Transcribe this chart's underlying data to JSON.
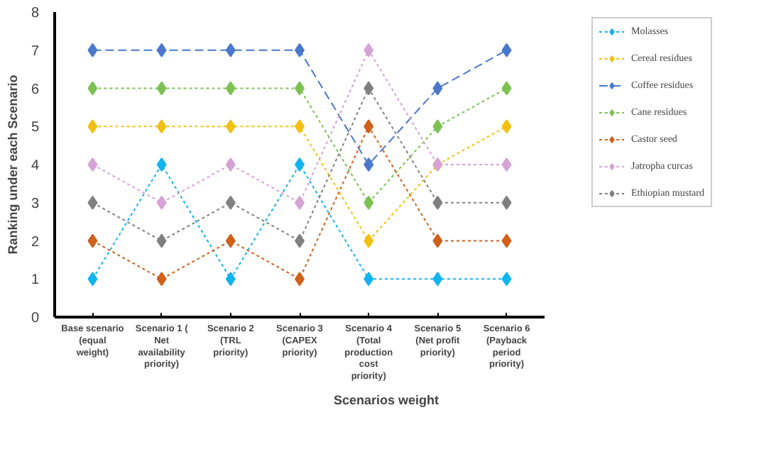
{
  "chart_data": {
    "type": "line",
    "categories": [
      "Base scenario (equal weight)",
      "Scenario 1 ( Net availability priority)",
      "Scenario 2 (TRL priority)",
      "Scenario 3 (CAPEX priority)",
      "Scenario 4 (Total production cost priority)",
      "Scenario 5 (Net profit priority)",
      "Scenario 6 (Payback period priority)"
    ],
    "xlabel": "Scenarios weight",
    "ylabel": "Ranking under each Scenario",
    "ylim": [
      0,
      8
    ],
    "yticks": [
      0,
      1,
      2,
      3,
      4,
      5,
      6,
      7,
      8
    ],
    "grid": false,
    "legend": "right",
    "marker": "diamond",
    "series": [
      {
        "name": "Molasses",
        "color": "#12b4ef",
        "line_style": "dotted",
        "values": [
          1,
          4,
          1,
          4,
          1,
          1,
          1
        ]
      },
      {
        "name": "Cereal residues",
        "color": "#f2c012",
        "line_style": "dotted",
        "values": [
          5,
          5,
          5,
          5,
          2,
          4,
          5
        ]
      },
      {
        "name": "Coffee residues",
        "color": "#4a78cc",
        "line_style": "dashed",
        "values": [
          7,
          7,
          7,
          7,
          4,
          6,
          7
        ]
      },
      {
        "name": "Cane residues",
        "color": "#7cc253",
        "line_style": "dotted",
        "values": [
          6,
          6,
          6,
          6,
          3,
          5,
          6
        ]
      },
      {
        "name": "Castor seed",
        "color": "#d0601a",
        "line_style": "dotted",
        "values": [
          2,
          1,
          2,
          1,
          5,
          2,
          2
        ]
      },
      {
        "name": "Jatropha curcas",
        "color": "#d6a3d6",
        "line_style": "dotted",
        "values": [
          4,
          3,
          4,
          3,
          7,
          4,
          4
        ]
      },
      {
        "name": "Ethiopian mustard",
        "color": "#808080",
        "line_style": "dotted",
        "values": [
          3,
          2,
          3,
          2,
          6,
          3,
          3
        ]
      }
    ]
  }
}
